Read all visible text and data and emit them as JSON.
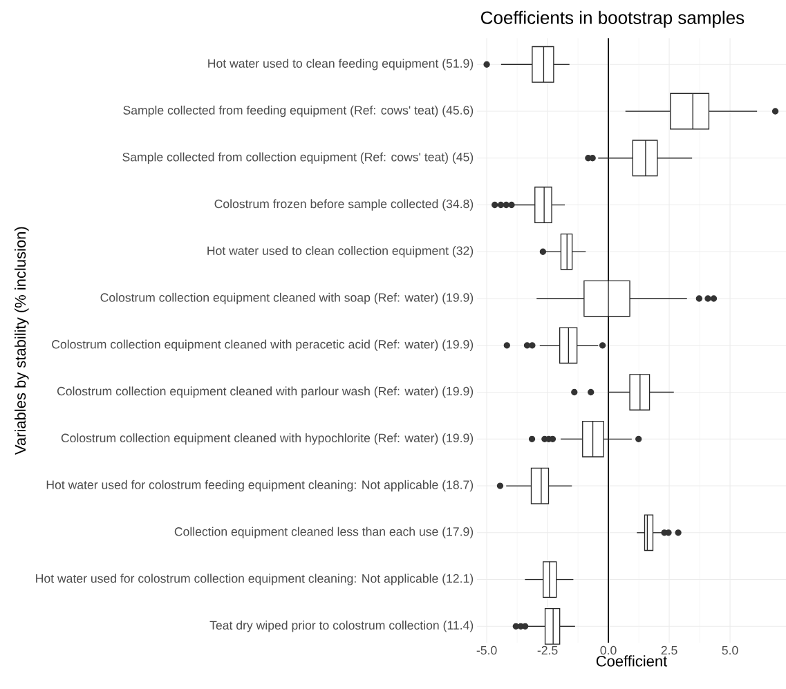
{
  "chart_data": {
    "type": "box",
    "orientation": "horizontal",
    "title": "Coefficients in bootstrap samples",
    "xlabel": "Coefficient",
    "ylabel": "Variables by stability (% inclusion)",
    "categories": [
      "Hot water used to clean feeding equipment (51.9)",
      "Sample collected from feeding equipment (Ref: cows' teat) (45.6)",
      "Sample collected from collection equipment (Ref: cows' teat) (45)",
      "Colostrum frozen before sample collected (34.8)",
      "Hot water used to clean collection equipment (32)",
      "Colostrum collection equipment cleaned with soap (Ref: water) (19.9)",
      "Colostrum collection equipment cleaned with peracetic acid (Ref: water) (19.9)",
      "Colostrum collection equipment cleaned with parlour wash (Ref: water) (19.9)",
      "Colostrum collection equipment cleaned with hypochlorite (Ref: water) (19.9)",
      "Hot water used for colostrum feeding equipment cleaning: Not applicable (18.7)",
      "Collection equipment cleaned less than each use (17.9)",
      "Hot water used for colostrum collection equipment cleaning: Not applicable (12.1)",
      "Teat dry wiped prior to colostrum collection (11.4)"
    ],
    "boxes": [
      {
        "low": -4.41,
        "q1": -3.13,
        "median": -2.66,
        "q3": -2.25,
        "high": -1.6,
        "outliers": [
          -5.0
        ]
      },
      {
        "low": 0.7,
        "q1": 2.55,
        "median": 3.47,
        "q3": 4.13,
        "high": 6.11,
        "outliers": [
          6.86
        ]
      },
      {
        "low": -0.42,
        "q1": 1.0,
        "median": 1.53,
        "q3": 2.01,
        "high": 3.44,
        "outliers": [
          -0.83,
          -0.65
        ]
      },
      {
        "low": -3.94,
        "q1": -3.02,
        "median": -2.64,
        "q3": -2.33,
        "high": -1.79,
        "outliers": [
          -4.67,
          -4.42,
          -4.2,
          -3.98
        ]
      },
      {
        "low": -2.58,
        "q1": -1.95,
        "median": -1.7,
        "q3": -1.49,
        "high": -0.93,
        "outliers": [
          -2.69
        ]
      },
      {
        "low": -2.95,
        "q1": -1.0,
        "median": 0.0,
        "q3": 0.88,
        "high": 3.23,
        "outliers": [
          3.73,
          4.09,
          4.33
        ]
      },
      {
        "low": -2.82,
        "q1": -2.0,
        "median": -1.64,
        "q3": -1.29,
        "high": -0.42,
        "outliers": [
          -4.17,
          -3.34,
          -3.13,
          -0.24
        ]
      },
      {
        "low": -0.03,
        "q1": 0.88,
        "median": 1.3,
        "q3": 1.69,
        "high": 2.69,
        "outliers": [
          -1.4,
          -0.72
        ]
      },
      {
        "low": -1.96,
        "q1": -1.06,
        "median": -0.64,
        "q3": -0.2,
        "high": 0.96,
        "outliers": [
          -3.14,
          -2.62,
          -2.45,
          -2.29,
          1.24
        ]
      },
      {
        "low": -4.2,
        "q1": -3.17,
        "median": -2.76,
        "q3": -2.46,
        "high": -1.5,
        "outliers": [
          -4.45
        ]
      },
      {
        "low": 1.17,
        "q1": 1.49,
        "median": 1.6,
        "q3": 1.83,
        "high": 2.19,
        "outliers": [
          2.3,
          2.47,
          2.87
        ]
      },
      {
        "low": -3.43,
        "q1": -2.68,
        "median": -2.42,
        "q3": -2.14,
        "high": -1.44
      },
      {
        "low": -3.38,
        "q1": -2.6,
        "median": -2.27,
        "q3": -2.0,
        "high": -1.37,
        "outliers": [
          -3.8,
          -3.6,
          -3.42
        ]
      }
    ],
    "xlim": [
      -5.4,
      7.3
    ],
    "xticks": [
      {
        "value": -5,
        "label": "-5.0"
      },
      {
        "value": -2.5,
        "label": "-2.5"
      },
      {
        "value": 0,
        "label": "0.0"
      },
      {
        "value": 2.5,
        "label": "2.5"
      },
      {
        "value": 5,
        "label": "5.0"
      }
    ],
    "grid": true,
    "ref_lines": [
      {
        "axis": "x",
        "value": 0
      }
    ]
  }
}
